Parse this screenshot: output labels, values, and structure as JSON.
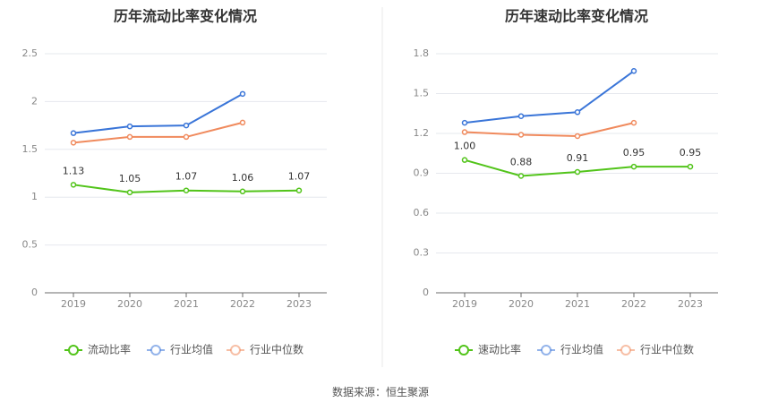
{
  "source_label": "数据来源：恒生聚源",
  "colors": {
    "company": "#52c41a",
    "industry_avg": "#3a75d8",
    "industry_median": "#f08a5d",
    "grid": "#e6e8ee",
    "axis": "#6b6b6b",
    "divider": "#e8e8e8"
  },
  "chart_data": [
    {
      "type": "line",
      "title": "历年流动比率变化情况",
      "categories": [
        "2019",
        "2020",
        "2021",
        "2022",
        "2023"
      ],
      "ylim": [
        0,
        2.5
      ],
      "yticks": [
        "0",
        "0.5",
        "1",
        "1.5",
        "2",
        "2.5"
      ],
      "ytick_values": [
        0,
        0.5,
        1,
        1.5,
        2,
        2.5
      ],
      "grid": true,
      "legend_position": "bottom",
      "series": [
        {
          "name": "流动比率",
          "color_key": "company",
          "values": [
            1.13,
            1.05,
            1.07,
            1.06,
            1.07
          ],
          "labels": [
            "1.13",
            "1.05",
            "1.07",
            "1.06",
            "1.07"
          ]
        },
        {
          "name": "行业均值",
          "color_key": "industry_avg",
          "values": [
            1.67,
            1.74,
            1.75,
            2.08,
            null
          ]
        },
        {
          "name": "行业中位数",
          "color_key": "industry_median",
          "values": [
            1.57,
            1.63,
            1.63,
            1.78,
            null
          ]
        }
      ]
    },
    {
      "type": "line",
      "title": "历年速动比率变化情况",
      "categories": [
        "2019",
        "2020",
        "2021",
        "2022",
        "2023"
      ],
      "ylim": [
        0,
        1.8
      ],
      "yticks": [
        "0",
        "0.3",
        "0.6",
        "0.9",
        "1.2",
        "1.5",
        "1.8"
      ],
      "ytick_values": [
        0,
        0.3,
        0.6,
        0.9,
        1.2,
        1.5,
        1.8
      ],
      "grid": true,
      "legend_position": "bottom",
      "series": [
        {
          "name": "速动比率",
          "color_key": "company",
          "values": [
            1.0,
            0.88,
            0.91,
            0.95,
            0.95
          ],
          "labels": [
            "1.00",
            "0.88",
            "0.91",
            "0.95",
            "0.95"
          ]
        },
        {
          "name": "行业均值",
          "color_key": "industry_avg",
          "values": [
            1.28,
            1.33,
            1.36,
            1.67,
            null
          ]
        },
        {
          "name": "行业中位数",
          "color_key": "industry_median",
          "values": [
            1.21,
            1.19,
            1.18,
            1.28,
            null
          ]
        }
      ]
    }
  ]
}
